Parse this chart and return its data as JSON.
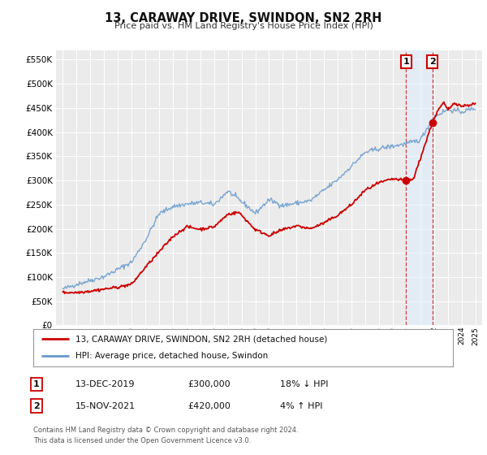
{
  "title": "13, CARAWAY DRIVE, SWINDON, SN2 2RH",
  "subtitle": "Price paid vs. HM Land Registry's House Price Index (HPI)",
  "ylabel_ticks": [
    "£0",
    "£50K",
    "£100K",
    "£150K",
    "£200K",
    "£250K",
    "£300K",
    "£350K",
    "£400K",
    "£450K",
    "£500K",
    "£550K"
  ],
  "ytick_values": [
    0,
    50000,
    100000,
    150000,
    200000,
    250000,
    300000,
    350000,
    400000,
    450000,
    500000,
    550000
  ],
  "xlim": [
    1994.5,
    2025.5
  ],
  "ylim": [
    0,
    570000
  ],
  "red_color": "#cc0000",
  "blue_color": "#6699cc",
  "vline1_x": 2019.96,
  "vline2_x": 2021.88,
  "marker1_x": 2019.96,
  "marker1_y": 300000,
  "marker2_x": 2021.88,
  "marker2_y": 420000,
  "legend_line1": "13, CARAWAY DRIVE, SWINDON, SN2 2RH (detached house)",
  "legend_line2": "HPI: Average price, detached house, Swindon",
  "table_row1": [
    "1",
    "13-DEC-2019",
    "£300,000",
    "18% ↓ HPI"
  ],
  "table_row2": [
    "2",
    "15-NOV-2021",
    "£420,000",
    "4% ↑ HPI"
  ],
  "footnote1": "Contains HM Land Registry data © Crown copyright and database right 2024.",
  "footnote2": "This data is licensed under the Open Government Licence v3.0.",
  "background_color": "#ffffff",
  "plot_bg_color": "#ebebeb"
}
